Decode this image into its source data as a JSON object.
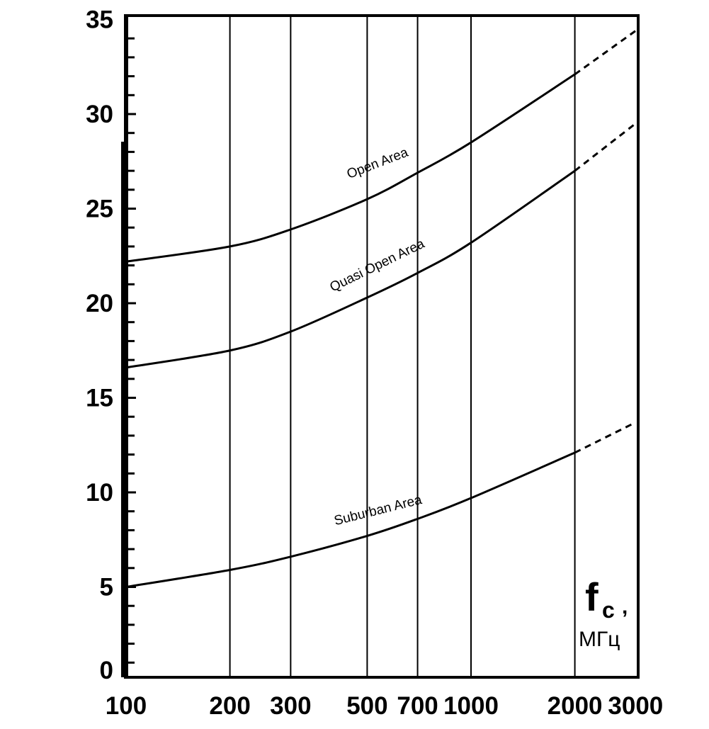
{
  "chart_data": {
    "type": "line",
    "title": "",
    "xlabel": "fc,",
    "xlabel_sub": "c",
    "xlabel_main": "f",
    "xunit": "МГц",
    "ylabel": "",
    "xscale": "log",
    "xlim": [
      100,
      3000
    ],
    "ylim": [
      0,
      35
    ],
    "grid": true,
    "x_ticks": [
      100,
      200,
      300,
      500,
      700,
      1000,
      2000,
      3000
    ],
    "x_tick_labels": [
      "100",
      "200",
      "300",
      "500",
      "700",
      "1000",
      "2000",
      "3000"
    ],
    "y_ticks": [
      0,
      5,
      10,
      15,
      20,
      25,
      30,
      35
    ],
    "y_tick_labels": [
      "0",
      "5",
      "10",
      "15",
      "20",
      "25",
      "30",
      "35"
    ],
    "x": [
      100,
      200,
      300,
      500,
      700,
      1000,
      2000,
      3000
    ],
    "series": [
      {
        "name": "Open Area",
        "values": [
          22.2,
          23.0,
          23.9,
          25.5,
          26.9,
          28.5,
          32.1,
          34.4
        ],
        "dashed_from": 2000
      },
      {
        "name": "Quasi Open Area",
        "values": [
          16.6,
          17.5,
          18.5,
          20.3,
          21.6,
          23.2,
          27.0,
          29.5
        ],
        "dashed_from": 2000
      },
      {
        "name": "Suburban Area",
        "values": [
          5.0,
          5.9,
          6.6,
          7.7,
          8.6,
          9.7,
          12.1,
          13.7
        ],
        "dashed_from": 2000
      }
    ],
    "line_color": "#000000"
  }
}
